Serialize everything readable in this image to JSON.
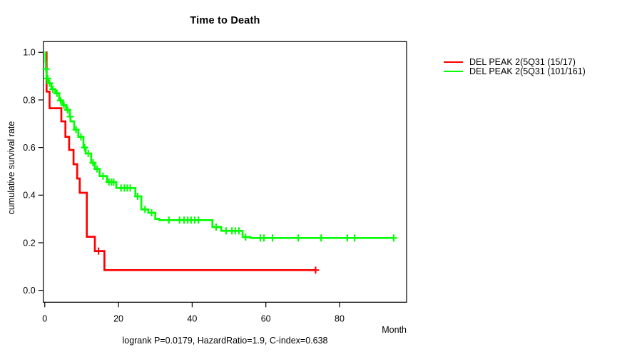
{
  "page": {
    "background": "#ffffff",
    "text_color": "#000000"
  },
  "chart_data": {
    "type": "line",
    "subtype": "kaplan-meier-step-curve",
    "title": "Time to Death",
    "xlabel": "Month",
    "ylabel": "cumulative survival rate",
    "footer": "logrank P=0.0179, HazardRatio=1.9, C-index=0.638",
    "grid": false,
    "legend_position": "outside-top-right",
    "xlim": [
      -0.4,
      98.2
    ],
    "ylim": [
      -0.05,
      1.045
    ],
    "xticks": [
      0,
      20,
      40,
      60,
      80
    ],
    "xtick_labels": [
      "0",
      "20",
      "40",
      "60",
      "80"
    ],
    "yticks": [
      0.0,
      0.2,
      0.4,
      0.6,
      0.8,
      1.0
    ],
    "ytick_labels": [
      "0.0",
      "0.2",
      "0.4",
      "0.6",
      "0.8",
      "1.0"
    ],
    "censor_marker": "plus",
    "series": [
      {
        "id": "group-15-17",
        "name": "DEL PEAK 2(5Q31 (15/17)",
        "color": "#ff0000",
        "steps": [
          [
            0,
            1.0
          ],
          [
            0.5,
            0.835
          ],
          [
            1.3,
            0.765
          ],
          [
            4.5,
            0.71
          ],
          [
            5.6,
            0.645
          ],
          [
            6.6,
            0.59
          ],
          [
            7.8,
            0.53
          ],
          [
            8.8,
            0.47
          ],
          [
            9.5,
            0.41
          ],
          [
            11.4,
            0.225
          ],
          [
            13.6,
            0.165
          ],
          [
            16.2,
            0.085
          ]
        ],
        "end_time": 73.5,
        "censors": [
          [
            14.6,
            0.165
          ],
          [
            73.5,
            0.085
          ]
        ]
      },
      {
        "id": "group-101-161",
        "name": "DEL PEAK 2(5Q31 (101/161)",
        "color": "#00ff00",
        "steps": [
          [
            0,
            1.0
          ],
          [
            0.2,
            0.96
          ],
          [
            0.3,
            0.93
          ],
          [
            0.5,
            0.89
          ],
          [
            0.9,
            0.87
          ],
          [
            1.8,
            0.845
          ],
          [
            2.9,
            0.828
          ],
          [
            3.9,
            0.798
          ],
          [
            4.8,
            0.778
          ],
          [
            5.8,
            0.758
          ],
          [
            6.8,
            0.73
          ],
          [
            7.0,
            0.71
          ],
          [
            8.0,
            0.675
          ],
          [
            9.1,
            0.645
          ],
          [
            10.5,
            0.6
          ],
          [
            11.1,
            0.575
          ],
          [
            12.6,
            0.536
          ],
          [
            13.6,
            0.51
          ],
          [
            14.9,
            0.48
          ],
          [
            16.9,
            0.455
          ],
          [
            19.4,
            0.43
          ],
          [
            24.6,
            0.395
          ],
          [
            26.2,
            0.34
          ],
          [
            28.1,
            0.326
          ],
          [
            30.0,
            0.3
          ],
          [
            31.0,
            0.295
          ],
          [
            45.5,
            0.266
          ],
          [
            47.9,
            0.25
          ],
          [
            53.7,
            0.224
          ],
          [
            55.8,
            0.22
          ]
        ],
        "end_time": 94.7,
        "censors": [
          [
            0.35,
            0.93
          ],
          [
            0.6,
            0.89
          ],
          [
            0.8,
            0.89
          ],
          [
            1.3,
            0.87
          ],
          [
            2.2,
            0.845
          ],
          [
            3.3,
            0.828
          ],
          [
            4.3,
            0.798
          ],
          [
            5.2,
            0.778
          ],
          [
            6.2,
            0.758
          ],
          [
            6.9,
            0.73
          ],
          [
            8.5,
            0.675
          ],
          [
            9.8,
            0.645
          ],
          [
            10.8,
            0.6
          ],
          [
            11.8,
            0.575
          ],
          [
            13.1,
            0.536
          ],
          [
            14.2,
            0.51
          ],
          [
            15.8,
            0.48
          ],
          [
            17.4,
            0.455
          ],
          [
            18.1,
            0.455
          ],
          [
            18.7,
            0.455
          ],
          [
            20.7,
            0.43
          ],
          [
            21.6,
            0.43
          ],
          [
            22.4,
            0.43
          ],
          [
            23.2,
            0.43
          ],
          [
            25.2,
            0.395
          ],
          [
            27.2,
            0.34
          ],
          [
            29.0,
            0.326
          ],
          [
            33.7,
            0.295
          ],
          [
            36.6,
            0.295
          ],
          [
            37.8,
            0.295
          ],
          [
            38.8,
            0.295
          ],
          [
            39.7,
            0.295
          ],
          [
            40.7,
            0.295
          ],
          [
            41.7,
            0.295
          ],
          [
            46.5,
            0.266
          ],
          [
            49.2,
            0.25
          ],
          [
            50.8,
            0.25
          ],
          [
            51.7,
            0.25
          ],
          [
            52.7,
            0.25
          ],
          [
            54.5,
            0.224
          ],
          [
            58.5,
            0.22
          ],
          [
            59.5,
            0.22
          ],
          [
            61.8,
            0.22
          ],
          [
            68.8,
            0.22
          ],
          [
            75.0,
            0.22
          ],
          [
            82.1,
            0.22
          ],
          [
            84.1,
            0.22
          ],
          [
            94.7,
            0.22
          ]
        ]
      }
    ]
  }
}
